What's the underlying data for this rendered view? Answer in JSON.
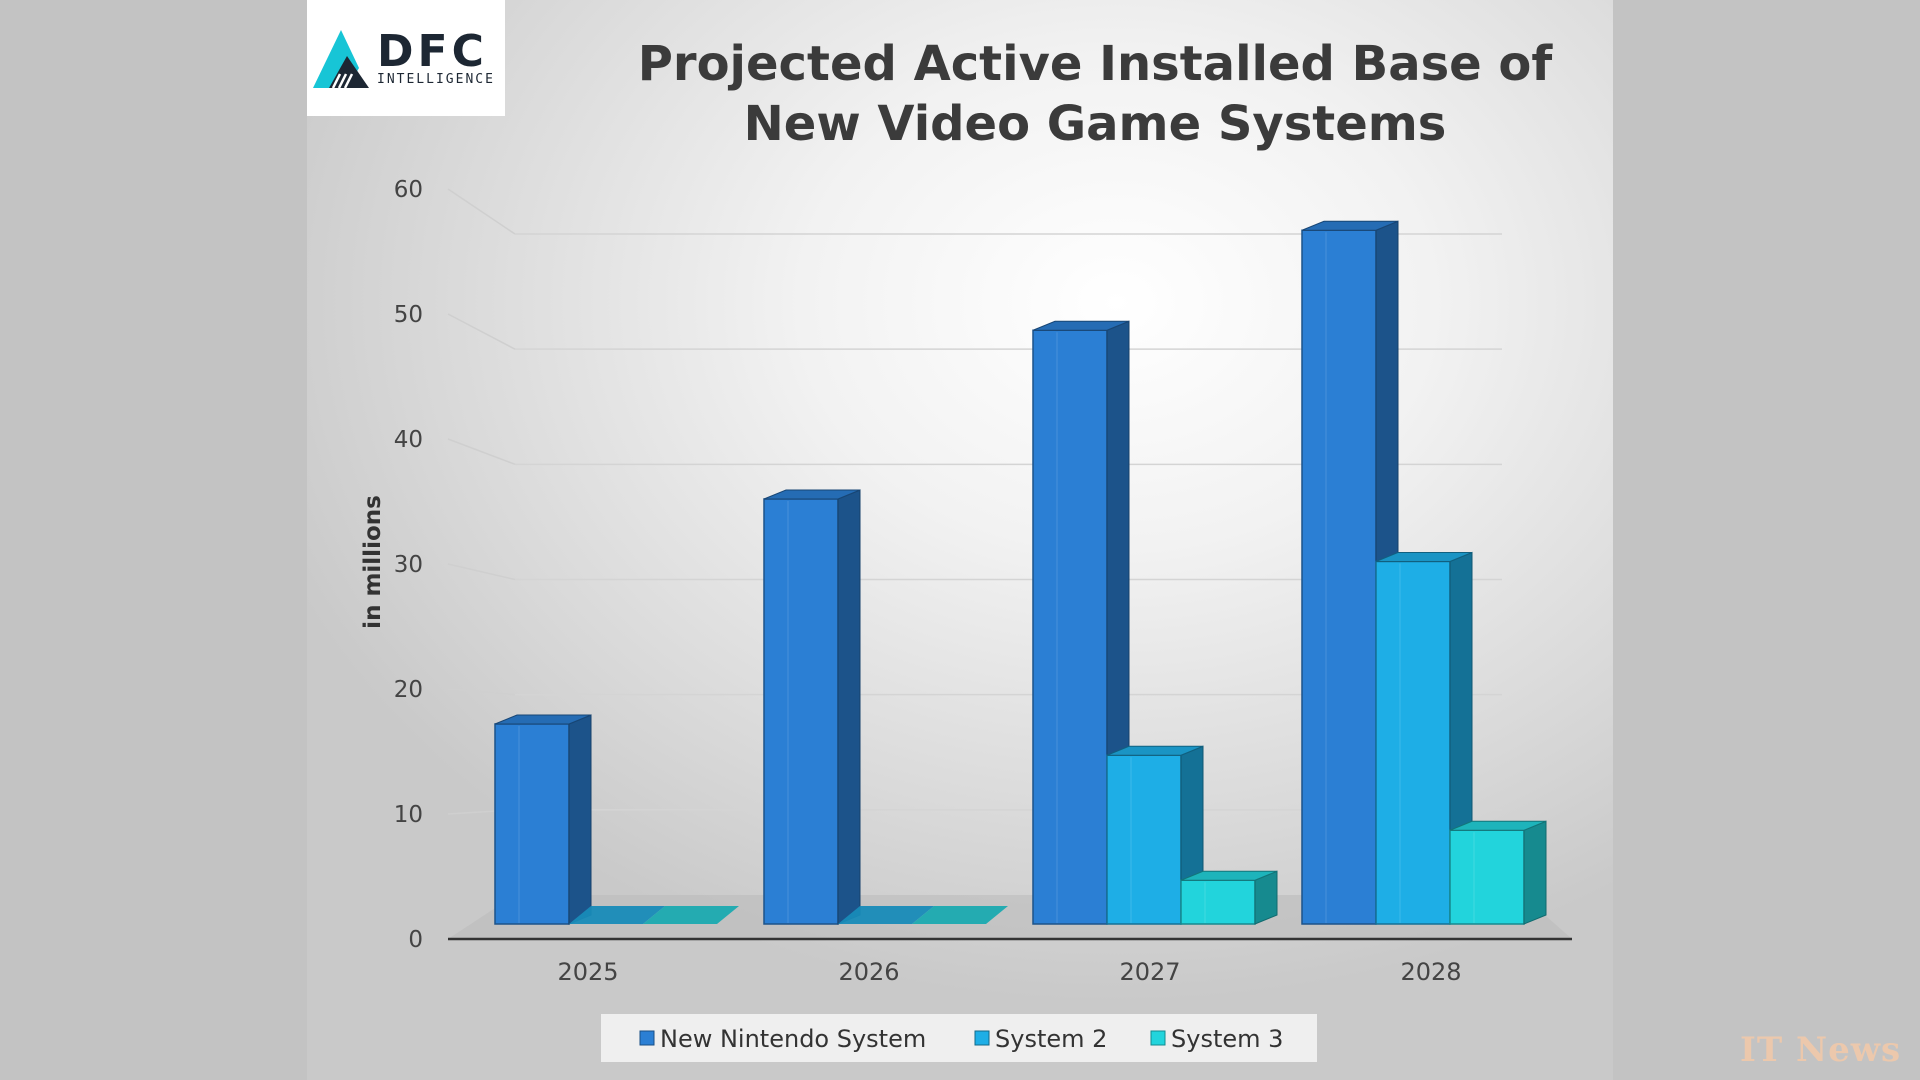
{
  "logo": {
    "brand": "DFC",
    "tagline": "INTELLIGENCE"
  },
  "watermark": "IT News",
  "colors": {
    "series1": "#2b7fd4",
    "series2": "#1eaee6",
    "series3": "#22d4dc",
    "background": "#c3c3c3"
  },
  "chart_data": {
    "type": "bar",
    "title_lines": [
      "Projected Active Installed Base of",
      "New Video Game Systems"
    ],
    "ylabel": "in millions",
    "xlabel": "",
    "ylim": [
      0,
      60
    ],
    "yticks": [
      0,
      10,
      20,
      30,
      40,
      50,
      60
    ],
    "categories": [
      "2025",
      "2026",
      "2027",
      "2028"
    ],
    "series": [
      {
        "name": "New Nintendo System",
        "values": [
          16,
          34,
          47.5,
          55.5
        ]
      },
      {
        "name": "System 2",
        "values": [
          0,
          0,
          13.5,
          29
        ]
      },
      {
        "name": "System 3",
        "values": [
          0,
          0,
          3.5,
          7.5
        ]
      }
    ],
    "grid": true,
    "legend_position": "bottom"
  }
}
